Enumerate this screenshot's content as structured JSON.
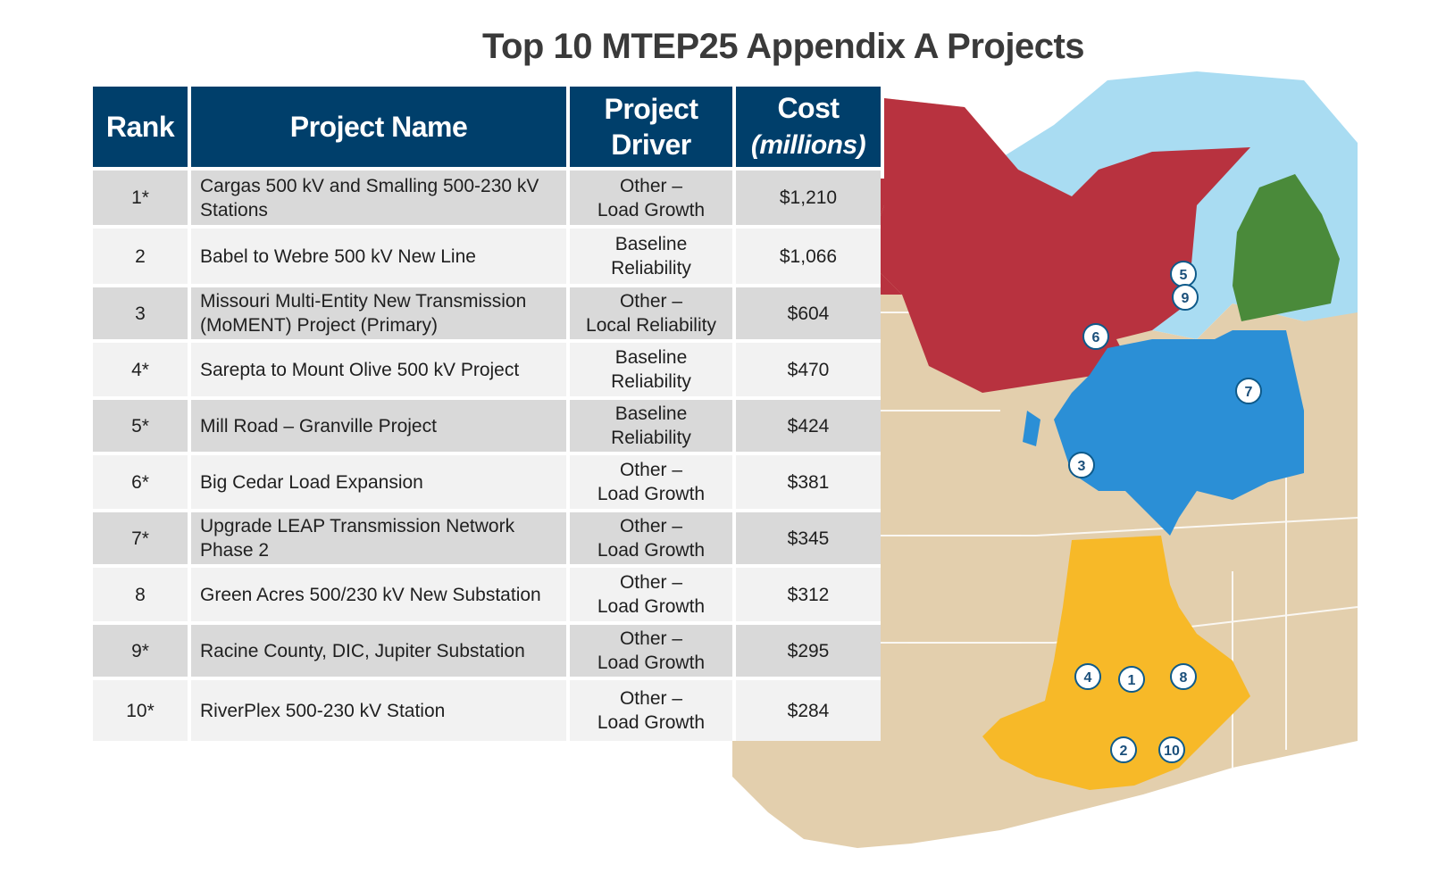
{
  "title": "Top 10 MTEP25 Appendix A Projects",
  "table": {
    "headers": {
      "rank": "Rank",
      "project_name": "Project Name",
      "driver_line1": "Project",
      "driver_line2": "Driver",
      "cost_line1": "Cost",
      "cost_line2": "(millions)"
    },
    "rows": [
      {
        "rank": "1*",
        "name": "Cargas 500 kV and Smalling 500-230 kV Stations",
        "driver_line1": "Other –",
        "driver_line2": "Load Growth",
        "cost": "$1,210"
      },
      {
        "rank": "2",
        "name": "Babel to Webre 500 kV New Line",
        "driver_line1": "Baseline",
        "driver_line2": "Reliability",
        "cost": "$1,066"
      },
      {
        "rank": "3",
        "name": "Missouri Multi-Entity New Transmission (MoMENT) Project (Primary)",
        "driver_line1": "Other –",
        "driver_line2": "Local Reliability",
        "cost": "$604"
      },
      {
        "rank": "4*",
        "name": "Sarepta to Mount Olive 500 kV Project",
        "driver_line1": "Baseline",
        "driver_line2": "Reliability",
        "cost": "$470"
      },
      {
        "rank": "5*",
        "name": "Mill Road – Granville Project",
        "driver_line1": "Baseline",
        "driver_line2": "Reliability",
        "cost": "$424"
      },
      {
        "rank": "6*",
        "name": "Big Cedar Load Expansion",
        "driver_line1": "Other –",
        "driver_line2": "Load Growth",
        "cost": "$381"
      },
      {
        "rank": "7*",
        "name": "Upgrade LEAP Transmission Network Phase 2",
        "driver_line1": "Other –",
        "driver_line2": "Load Growth",
        "cost": "$345"
      },
      {
        "rank": "8",
        "name": "Green Acres 500/230 kV New Substation",
        "driver_line1": "Other –",
        "driver_line2": "Load Growth",
        "cost": "$312"
      },
      {
        "rank": "9*",
        "name": "Racine County, DIC, Jupiter Substation",
        "driver_line1": "Other –",
        "driver_line2": "Load Growth",
        "cost": "$295"
      },
      {
        "rank": "10*",
        "name": "RiverPlex 500-230 kV Station",
        "driver_line1": "Other –",
        "driver_line2": "Load Growth",
        "cost": "$284"
      }
    ]
  },
  "map": {
    "colors": {
      "land": "#e3cfad",
      "water": "#a9dcf2",
      "north_region": "#b8323f",
      "central_region": "#2b8fd6",
      "south_region": "#f7b928",
      "michigan_region": "#4a8a3a",
      "state_lines": "#ffffff"
    },
    "markers": [
      {
        "label": "1"
      },
      {
        "label": "2"
      },
      {
        "label": "3"
      },
      {
        "label": "4"
      },
      {
        "label": "5"
      },
      {
        "label": "6"
      },
      {
        "label": "7"
      },
      {
        "label": "8"
      },
      {
        "label": "9"
      },
      {
        "label": "10"
      }
    ]
  }
}
